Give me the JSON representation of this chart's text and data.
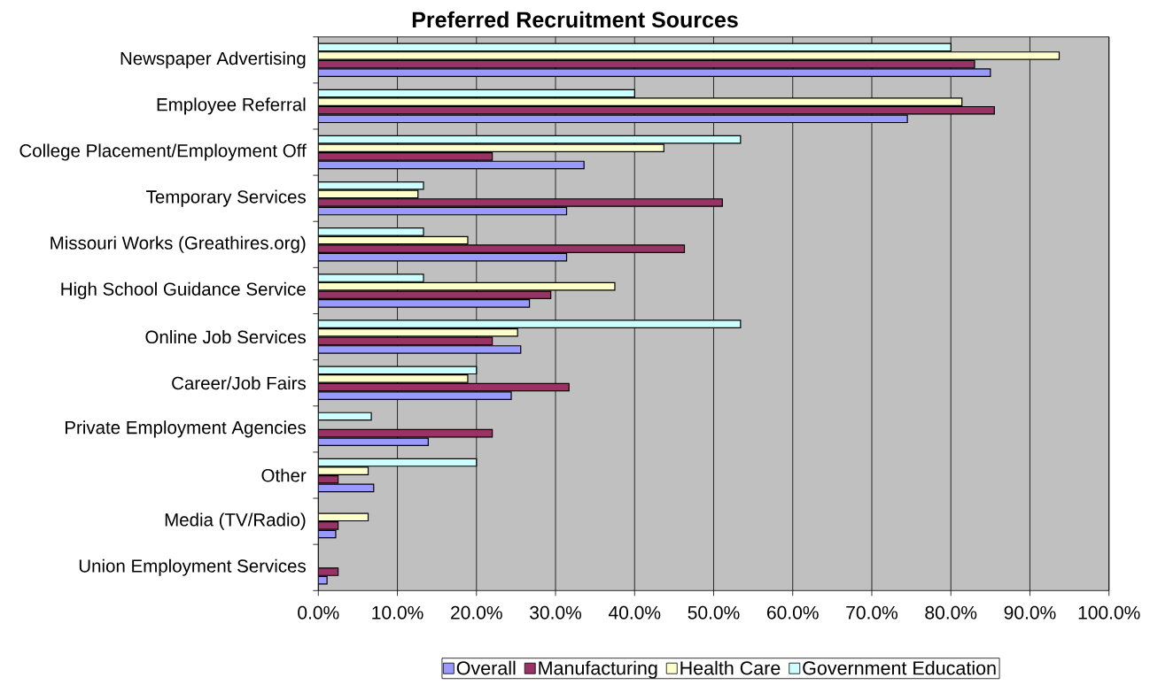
{
  "chart_data": {
    "type": "bar",
    "orientation": "horizontal",
    "title": "Preferred Recruitment Sources",
    "categories": [
      "Newspaper Advertising",
      "Employee Referral",
      "College Placement/Employment Off",
      "Temporary Services",
      "Missouri Works (Greathires.org)",
      "High School Guidance Service",
      "Online Job Services",
      "Career/Job Fairs",
      "Private Employment Agencies",
      "Other",
      "Media (TV/Radio)",
      "Union Employment Services"
    ],
    "series": [
      {
        "name": "Overall",
        "color": "#9999ff",
        "values": [
          85.0,
          74.5,
          33.6,
          31.4,
          31.4,
          26.7,
          25.6,
          24.4,
          13.9,
          7.0,
          2.2,
          1.1
        ]
      },
      {
        "name": "Manufacturing",
        "color": "#993366",
        "values": [
          83.0,
          85.5,
          22.0,
          51.1,
          46.3,
          29.4,
          22.0,
          31.7,
          22.0,
          2.5,
          2.5,
          2.5
        ]
      },
      {
        "name": "Health Care",
        "color": "#ffffcc",
        "values": [
          93.7,
          81.4,
          43.7,
          12.6,
          18.9,
          37.5,
          25.2,
          18.9,
          null,
          6.3,
          6.3,
          null
        ]
      },
      {
        "name": "Government Education",
        "color": "#ccffff",
        "values": [
          80.0,
          40.0,
          53.4,
          13.3,
          13.3,
          13.3,
          53.4,
          20.0,
          6.7,
          20.0,
          null,
          null
        ]
      }
    ],
    "xlim": [
      0,
      100
    ],
    "xticks": [
      {
        "value": 0,
        "label": "0.0%"
      },
      {
        "value": 10,
        "label": "10.0%"
      },
      {
        "value": 20,
        "label": "20.0%"
      },
      {
        "value": 30,
        "label": "30.0%"
      },
      {
        "value": 40,
        "label": "40.0%"
      },
      {
        "value": 50,
        "label": "50.0%"
      },
      {
        "value": 60,
        "label": "60.0%"
      },
      {
        "value": 70,
        "label": "70.0%"
      },
      {
        "value": 80,
        "label": "80.0%"
      },
      {
        "value": 90,
        "label": "90.0%"
      },
      {
        "value": 100,
        "label": "100.0%"
      }
    ],
    "grid": "x",
    "legend": "bottom"
  }
}
